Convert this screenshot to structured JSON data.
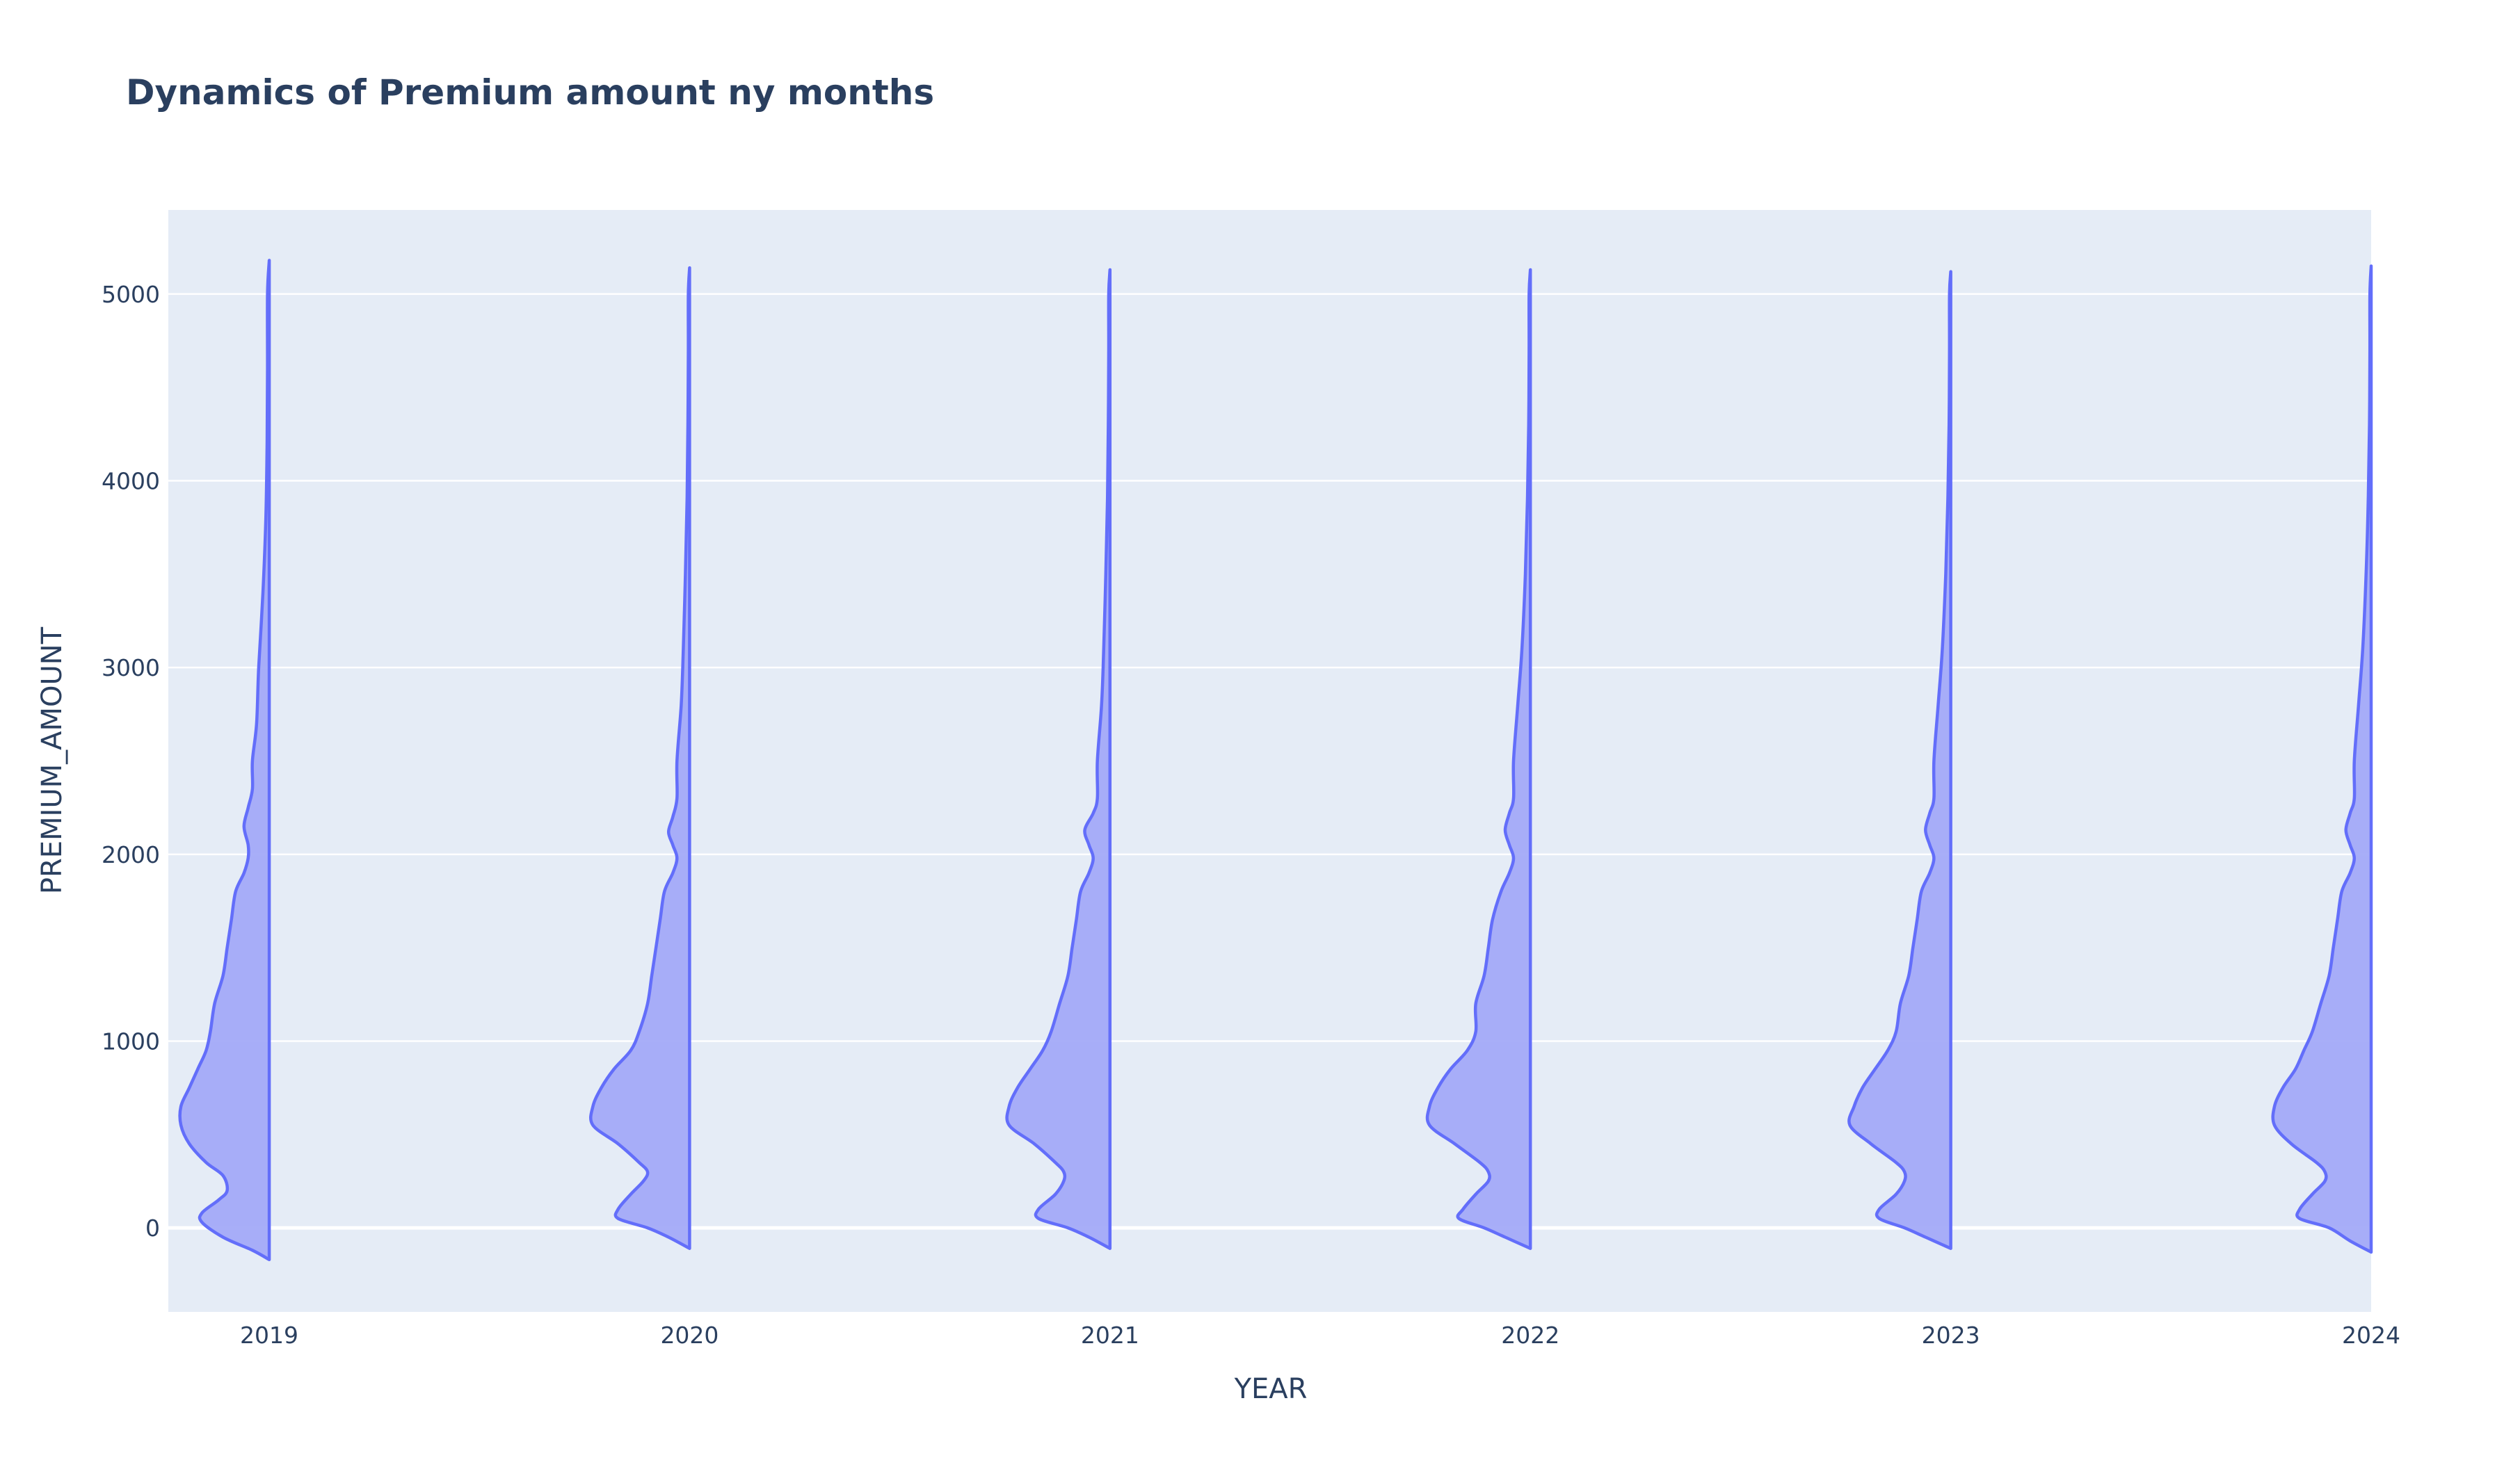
{
  "chart_data": {
    "type": "violin",
    "side": "negative",
    "title": "Dynamics of Premium amount ny months",
    "xlabel": "YEAR",
    "ylabel": "PREMIUM_AMOUNT",
    "x_range": [
      2018.76,
      2024.0
    ],
    "ylim": [
      -450,
      5450
    ],
    "y_ticks": [
      0,
      1000,
      2000,
      3000,
      4000,
      5000
    ],
    "y_tick_labels": [
      "0",
      "1000",
      "2000",
      "3000",
      "4000",
      "5000"
    ],
    "x_ticks": [
      2019,
      2020,
      2021,
      2022,
      2023,
      2024
    ],
    "x_tick_labels": [
      "2019",
      "2020",
      "2021",
      "2022",
      "2023",
      "2024"
    ],
    "grid": true,
    "colors": {
      "plot_bg": "#e5ecf6",
      "line": "#636efa",
      "fill": "#a3aaf8",
      "text": "#2a3f5f"
    },
    "violins": [
      {
        "x": 2019,
        "y_min": -170,
        "y_max": 5180,
        "profile": [
          [
            -170,
            0.0
          ],
          [
            -120,
            0.04
          ],
          [
            -50,
            0.11
          ],
          [
            30,
            0.16
          ],
          [
            80,
            0.16
          ],
          [
            150,
            0.12
          ],
          [
            200,
            0.1
          ],
          [
            280,
            0.11
          ],
          [
            350,
            0.15
          ],
          [
            450,
            0.19
          ],
          [
            550,
            0.21
          ],
          [
            650,
            0.21
          ],
          [
            750,
            0.19
          ],
          [
            850,
            0.17
          ],
          [
            950,
            0.15
          ],
          [
            1050,
            0.14
          ],
          [
            1200,
            0.13
          ],
          [
            1350,
            0.11
          ],
          [
            1500,
            0.1
          ],
          [
            1650,
            0.09
          ],
          [
            1800,
            0.08
          ],
          [
            1900,
            0.06
          ],
          [
            1980,
            0.05
          ],
          [
            2050,
            0.05
          ],
          [
            2150,
            0.06
          ],
          [
            2250,
            0.05
          ],
          [
            2350,
            0.04
          ],
          [
            2500,
            0.04
          ],
          [
            2700,
            0.03
          ],
          [
            3000,
            0.025
          ],
          [
            3400,
            0.015
          ],
          [
            3800,
            0.008
          ],
          [
            4200,
            0.005
          ],
          [
            4600,
            0.004
          ],
          [
            5000,
            0.004
          ],
          [
            5180,
            0.0
          ]
        ]
      },
      {
        "x": 2020,
        "y_min": -110,
        "y_max": 5140,
        "profile": [
          [
            -110,
            0.0
          ],
          [
            -50,
            0.05
          ],
          [
            0,
            0.1
          ],
          [
            50,
            0.17
          ],
          [
            100,
            0.17
          ],
          [
            180,
            0.14
          ],
          [
            250,
            0.11
          ],
          [
            300,
            0.1
          ],
          [
            350,
            0.12
          ],
          [
            450,
            0.17
          ],
          [
            550,
            0.23
          ],
          [
            650,
            0.23
          ],
          [
            750,
            0.21
          ],
          [
            850,
            0.18
          ],
          [
            950,
            0.14
          ],
          [
            1050,
            0.12
          ],
          [
            1200,
            0.1
          ],
          [
            1350,
            0.09
          ],
          [
            1500,
            0.08
          ],
          [
            1650,
            0.07
          ],
          [
            1800,
            0.06
          ],
          [
            1900,
            0.04
          ],
          [
            1980,
            0.03
          ],
          [
            2050,
            0.04
          ],
          [
            2120,
            0.05
          ],
          [
            2200,
            0.04
          ],
          [
            2300,
            0.03
          ],
          [
            2500,
            0.03
          ],
          [
            2800,
            0.02
          ],
          [
            3100,
            0.015
          ],
          [
            3500,
            0.01
          ],
          [
            3900,
            0.006
          ],
          [
            4300,
            0.004
          ],
          [
            4700,
            0.003
          ],
          [
            5000,
            0.003
          ],
          [
            5140,
            0.0
          ]
        ]
      },
      {
        "x": 2021,
        "y_min": -110,
        "y_max": 5130,
        "profile": [
          [
            -110,
            0.0
          ],
          [
            -50,
            0.05
          ],
          [
            0,
            0.1
          ],
          [
            50,
            0.17
          ],
          [
            100,
            0.17
          ],
          [
            180,
            0.13
          ],
          [
            250,
            0.11
          ],
          [
            300,
            0.11
          ],
          [
            350,
            0.13
          ],
          [
            450,
            0.18
          ],
          [
            550,
            0.24
          ],
          [
            650,
            0.24
          ],
          [
            750,
            0.22
          ],
          [
            850,
            0.19
          ],
          [
            950,
            0.16
          ],
          [
            1050,
            0.14
          ],
          [
            1200,
            0.12
          ],
          [
            1350,
            0.1
          ],
          [
            1500,
            0.09
          ],
          [
            1650,
            0.08
          ],
          [
            1800,
            0.07
          ],
          [
            1900,
            0.05
          ],
          [
            1980,
            0.04
          ],
          [
            2050,
            0.05
          ],
          [
            2130,
            0.06
          ],
          [
            2220,
            0.04
          ],
          [
            2300,
            0.03
          ],
          [
            2500,
            0.03
          ],
          [
            2800,
            0.02
          ],
          [
            3100,
            0.015
          ],
          [
            3500,
            0.01
          ],
          [
            3900,
            0.006
          ],
          [
            4300,
            0.004
          ],
          [
            4700,
            0.003
          ],
          [
            5000,
            0.003
          ],
          [
            5130,
            0.0
          ]
        ]
      },
      {
        "x": 2022,
        "y_min": -110,
        "y_max": 5130,
        "profile": [
          [
            -110,
            0.0
          ],
          [
            -50,
            0.06
          ],
          [
            0,
            0.11
          ],
          [
            50,
            0.17
          ],
          [
            100,
            0.16
          ],
          [
            180,
            0.13
          ],
          [
            250,
            0.1
          ],
          [
            300,
            0.1
          ],
          [
            350,
            0.12
          ],
          [
            450,
            0.18
          ],
          [
            550,
            0.24
          ],
          [
            650,
            0.24
          ],
          [
            750,
            0.22
          ],
          [
            850,
            0.19
          ],
          [
            950,
            0.15
          ],
          [
            1050,
            0.13
          ],
          [
            1200,
            0.13
          ],
          [
            1350,
            0.11
          ],
          [
            1500,
            0.1
          ],
          [
            1650,
            0.09
          ],
          [
            1800,
            0.07
          ],
          [
            1900,
            0.05
          ],
          [
            1980,
            0.04
          ],
          [
            2050,
            0.05
          ],
          [
            2130,
            0.06
          ],
          [
            2220,
            0.05
          ],
          [
            2300,
            0.04
          ],
          [
            2500,
            0.04
          ],
          [
            2800,
            0.03
          ],
          [
            3100,
            0.02
          ],
          [
            3500,
            0.012
          ],
          [
            3900,
            0.007
          ],
          [
            4300,
            0.004
          ],
          [
            4700,
            0.003
          ],
          [
            5000,
            0.003
          ],
          [
            5130,
            0.0
          ]
        ]
      },
      {
        "x": 2023,
        "y_min": -110,
        "y_max": 5120,
        "profile": [
          [
            -110,
            0.0
          ],
          [
            -50,
            0.06
          ],
          [
            0,
            0.11
          ],
          [
            50,
            0.17
          ],
          [
            100,
            0.17
          ],
          [
            180,
            0.13
          ],
          [
            250,
            0.11
          ],
          [
            300,
            0.11
          ],
          [
            350,
            0.13
          ],
          [
            450,
            0.19
          ],
          [
            550,
            0.24
          ],
          [
            650,
            0.23
          ],
          [
            750,
            0.21
          ],
          [
            850,
            0.18
          ],
          [
            950,
            0.15
          ],
          [
            1050,
            0.13
          ],
          [
            1200,
            0.12
          ],
          [
            1350,
            0.1
          ],
          [
            1500,
            0.09
          ],
          [
            1650,
            0.08
          ],
          [
            1800,
            0.07
          ],
          [
            1900,
            0.05
          ],
          [
            1980,
            0.04
          ],
          [
            2050,
            0.05
          ],
          [
            2130,
            0.06
          ],
          [
            2220,
            0.05
          ],
          [
            2300,
            0.04
          ],
          [
            2500,
            0.04
          ],
          [
            2800,
            0.03
          ],
          [
            3100,
            0.02
          ],
          [
            3500,
            0.012
          ],
          [
            3900,
            0.007
          ],
          [
            4300,
            0.004
          ],
          [
            4700,
            0.003
          ],
          [
            5000,
            0.003
          ],
          [
            5120,
            0.0
          ]
        ]
      },
      {
        "x": 2024,
        "y_min": -130,
        "y_max": 5150,
        "profile": [
          [
            -130,
            0.0
          ],
          [
            -70,
            0.05
          ],
          [
            0,
            0.1
          ],
          [
            50,
            0.17
          ],
          [
            100,
            0.17
          ],
          [
            180,
            0.14
          ],
          [
            250,
            0.11
          ],
          [
            300,
            0.11
          ],
          [
            350,
            0.13
          ],
          [
            450,
            0.19
          ],
          [
            550,
            0.23
          ],
          [
            650,
            0.23
          ],
          [
            750,
            0.21
          ],
          [
            850,
            0.18
          ],
          [
            950,
            0.16
          ],
          [
            1050,
            0.14
          ],
          [
            1200,
            0.12
          ],
          [
            1350,
            0.1
          ],
          [
            1500,
            0.09
          ],
          [
            1650,
            0.08
          ],
          [
            1800,
            0.07
          ],
          [
            1900,
            0.05
          ],
          [
            1980,
            0.04
          ],
          [
            2050,
            0.05
          ],
          [
            2130,
            0.06
          ],
          [
            2220,
            0.05
          ],
          [
            2300,
            0.04
          ],
          [
            2500,
            0.04
          ],
          [
            2800,
            0.03
          ],
          [
            3100,
            0.02
          ],
          [
            3500,
            0.012
          ],
          [
            3900,
            0.007
          ],
          [
            4300,
            0.004
          ],
          [
            4700,
            0.003
          ],
          [
            5000,
            0.003
          ],
          [
            5150,
            0.0
          ]
        ]
      }
    ]
  }
}
